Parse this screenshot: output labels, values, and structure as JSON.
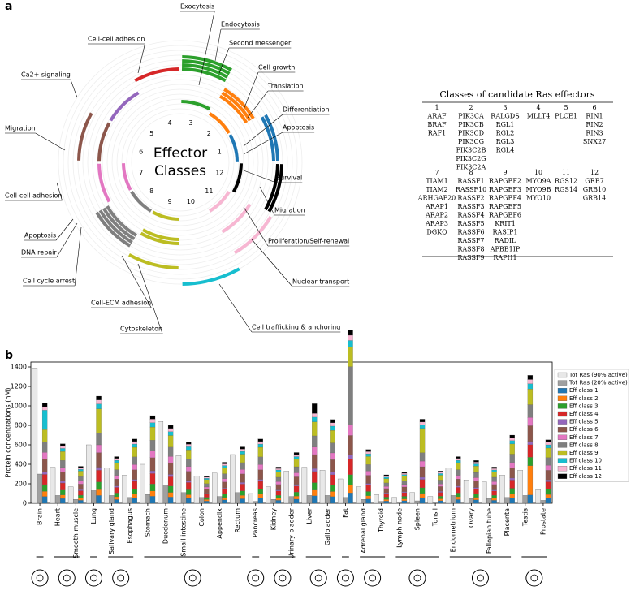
{
  "panel_a": {
    "label": "a",
    "center_title": [
      "Effector",
      "Classes"
    ],
    "class_numbers": [
      "1",
      "2",
      "3",
      "4",
      "5",
      "6",
      "7",
      "8",
      "9",
      "10",
      "11",
      "12"
    ],
    "functions": [
      "Exocytosis",
      "Endocytosis",
      "Second messenger",
      "Cell growth",
      "Translation",
      "Differentiation",
      "Apoptosis",
      "Survival",
      "Migration",
      "Proliferation/Self-renewal",
      "Nuclear transport",
      "Cell trafficking & anchoring",
      "Cytoskeleton",
      "Cell-ECM adhesion",
      "Cell cycle arrest",
      "DNA repair",
      "Apoptosis",
      "Cell-cell adhesion",
      "Migration",
      "Ca2+ signaling",
      "Cell-cell adhesion"
    ]
  },
  "table": {
    "title": "Classes of candidate Ras effectors",
    "groups": [
      {
        "number": "1",
        "genes": [
          "ARAF",
          "BRAF",
          "RAF1"
        ]
      },
      {
        "number": "2",
        "genes": [
          "PIK3CA",
          "PIK3CB",
          "PIK3CD",
          "PIK3CG",
          "PIK3C2B",
          "PIK3C2G",
          "PIK3C2A"
        ]
      },
      {
        "number": "3",
        "genes": [
          "RALGDS",
          "RGL1",
          "RGL2",
          "RGL3",
          "RGL4"
        ]
      },
      {
        "number": "4",
        "genes": [
          "MLLT4"
        ]
      },
      {
        "number": "5",
        "genes": [
          "PLCE1"
        ]
      },
      {
        "number": "6",
        "genes": [
          "RIN1",
          "RIN2",
          "RIN3",
          "SNX27"
        ]
      },
      {
        "number": "7",
        "genes": [
          "TIAM1",
          "TIAM2",
          "ARHGAP20",
          "ARAP1",
          "ARAP2",
          "ARAP3",
          "DGKQ"
        ]
      },
      {
        "number": "8",
        "genes": [
          "RASSF1",
          "RASSF10",
          "RASSF2",
          "RASSF3",
          "RASSF4",
          "RASSF5",
          "RASSF6",
          "RASSF7",
          "RASSF8",
          "RASSF9"
        ]
      },
      {
        "number": "9",
        "genes": [
          "RAPGEF2",
          "RAPGEF3",
          "RAPGEF4",
          "RAPGEF5",
          "RAPGEF6",
          "KRIT1",
          "RASIP1",
          "RADIL",
          "APBB1IP",
          "RAPH1"
        ]
      },
      {
        "number": "10",
        "genes": [
          "MYO9A",
          "MYO9B",
          "MYO10"
        ]
      },
      {
        "number": "11",
        "genes": [
          "RGS12",
          "RGS14"
        ]
      },
      {
        "number": "12",
        "genes": [
          "GRB7",
          "GRB10",
          "GRB14"
        ]
      }
    ]
  },
  "chart_data": {
    "type": "bar",
    "panel_label": "b",
    "y_label": "Protein concentrations (nM)",
    "categories": [
      "Brain",
      "Heart",
      "Smooth muscle",
      "Lung",
      "Salivary gland",
      "Esophagus",
      "Stomach",
      "Duodenum",
      "Small intestine",
      "Colon",
      "Appendix",
      "Rectum",
      "Pancreas",
      "Kidney",
      "Urinary bladder",
      "Liver",
      "Gallbladder",
      "Fat",
      "Adrenal gland",
      "Thyroid",
      "Lymph node",
      "Spleen",
      "Tonsil",
      "Endometrium",
      "Ovary",
      "Fallopian tube",
      "Placenta",
      "Testis",
      "Prostate"
    ],
    "ylim": [
      0,
      1450
    ],
    "yticks": [
      0,
      200,
      400,
      600,
      800,
      1000,
      1200,
      1400
    ],
    "legend": "upper right",
    "series": [
      {
        "name": "Tot Ras (90% active)",
        "color": "#e8e8e8",
        "stacked": false,
        "values": [
          1390,
          370,
          170,
          600,
          360,
          290,
          400,
          840,
          490,
          280,
          310,
          500,
          100,
          170,
          330,
          370,
          340,
          250,
          170,
          90,
          60,
          110,
          70,
          360,
          240,
          220,
          290,
          340,
          140
        ]
      },
      {
        "name": "Tot Ras (20% active)",
        "color": "#a0a0a0",
        "stacked": false,
        "values": [
          300,
          80,
          40,
          130,
          80,
          60,
          90,
          190,
          110,
          60,
          70,
          110,
          20,
          40,
          70,
          80,
          80,
          60,
          40,
          20,
          15,
          25,
          15,
          80,
          50,
          50,
          60,
          80,
          30
        ]
      },
      {
        "name": "Eff class 1",
        "color": "#1f77b4",
        "stacked": true,
        "values": [
          70,
          49,
          30,
          80,
          38,
          53,
          72,
          64,
          50,
          22,
          34,
          46,
          53,
          30,
          42,
          77,
          69,
          107,
          44,
          23,
          26,
          58,
          26,
          38,
          35,
          30,
          56,
          86,
          52
        ]
      },
      {
        "name": "Eff class 2",
        "color": "#ff7f0e",
        "stacked": true,
        "values": [
          52,
          37,
          23,
          60,
          29,
          40,
          54,
          48,
          38,
          17,
          25,
          35,
          40,
          22,
          31,
          58,
          52,
          80,
          33,
          17,
          19,
          43,
          20,
          29,
          26,
          22,
          42,
          300,
          39
        ]
      },
      {
        "name": "Eff class 3",
        "color": "#2ca02c",
        "stacked": true,
        "values": [
          70,
          49,
          30,
          80,
          38,
          53,
          72,
          64,
          50,
          22,
          34,
          46,
          53,
          30,
          42,
          77,
          69,
          107,
          44,
          23,
          26,
          58,
          26,
          38,
          35,
          30,
          56,
          86,
          52
        ]
      },
      {
        "name": "Eff class 4",
        "color": "#d62728",
        "stacked": true,
        "values": [
          104,
          73,
          46,
          120,
          58,
          79,
          108,
          96,
          76,
          34,
          50,
          70,
          79,
          44,
          62,
          115,
          103,
          161,
          66,
          35,
          38,
          86,
          40,
          58,
          53,
          44,
          84,
          130,
          78
        ]
      },
      {
        "name": "Eff class 5",
        "color": "#9467bd",
        "stacked": true,
        "values": [
          26,
          18,
          11,
          30,
          14,
          20,
          27,
          24,
          19,
          8,
          13,
          17,
          20,
          11,
          16,
          29,
          26,
          40,
          17,
          9,
          10,
          22,
          10,
          14,
          13,
          11,
          21,
          32,
          20
        ]
      },
      {
        "name": "Eff class 6",
        "color": "#8c564b",
        "stacked": true,
        "values": [
          130,
          92,
          57,
          150,
          72,
          99,
          135,
          120,
          95,
          42,
          63,
          87,
          99,
          56,
          78,
          144,
          129,
          201,
          83,
          44,
          48,
          108,
          50,
          72,
          66,
          56,
          105,
          162,
          98
        ]
      },
      {
        "name": "Eff class 7",
        "color": "#e377c2",
        "stacked": true,
        "values": [
          70,
          49,
          30,
          80,
          38,
          53,
          72,
          64,
          50,
          22,
          34,
          46,
          53,
          30,
          42,
          77,
          69,
          107,
          44,
          23,
          26,
          58,
          26,
          38,
          35,
          30,
          56,
          86,
          52
        ]
      },
      {
        "name": "Eff class 8",
        "color": "#7f7f7f",
        "stacked": true,
        "values": [
          104,
          73,
          46,
          120,
          58,
          79,
          108,
          96,
          76,
          34,
          50,
          70,
          79,
          44,
          62,
          115,
          103,
          600,
          66,
          35,
          38,
          86,
          40,
          58,
          53,
          44,
          84,
          130,
          78
        ]
      },
      {
        "name": "Eff class 9",
        "color": "#bcbd22",
        "stacked": true,
        "values": [
          130,
          92,
          57,
          250,
          72,
          99,
          135,
          120,
          95,
          42,
          63,
          87,
          99,
          56,
          78,
          144,
          129,
          201,
          83,
          44,
          48,
          250,
          50,
          72,
          66,
          56,
          105,
          162,
          98
        ]
      },
      {
        "name": "Eff class 10",
        "color": "#17becf",
        "stacked": true,
        "values": [
          200,
          31,
          19,
          50,
          24,
          33,
          45,
          40,
          32,
          14,
          21,
          29,
          33,
          19,
          26,
          48,
          43,
          67,
          28,
          15,
          16,
          36,
          17,
          24,
          22,
          19,
          35,
          54,
          33
        ]
      },
      {
        "name": "Eff class 11",
        "color": "#f7b6d2",
        "stacked": true,
        "values": [
          35,
          24,
          15,
          40,
          19,
          26,
          36,
          32,
          25,
          11,
          17,
          23,
          26,
          15,
          21,
          38,
          34,
          54,
          22,
          12,
          13,
          29,
          13,
          19,
          18,
          15,
          28,
          43,
          26
        ]
      },
      {
        "name": "Eff class 12",
        "color": "#000000",
        "stacked": true,
        "values": [
          35,
          24,
          15,
          40,
          19,
          26,
          36,
          32,
          25,
          11,
          17,
          23,
          26,
          15,
          21,
          100,
          34,
          54,
          22,
          12,
          13,
          29,
          13,
          19,
          18,
          15,
          28,
          43,
          26
        ]
      }
    ]
  }
}
